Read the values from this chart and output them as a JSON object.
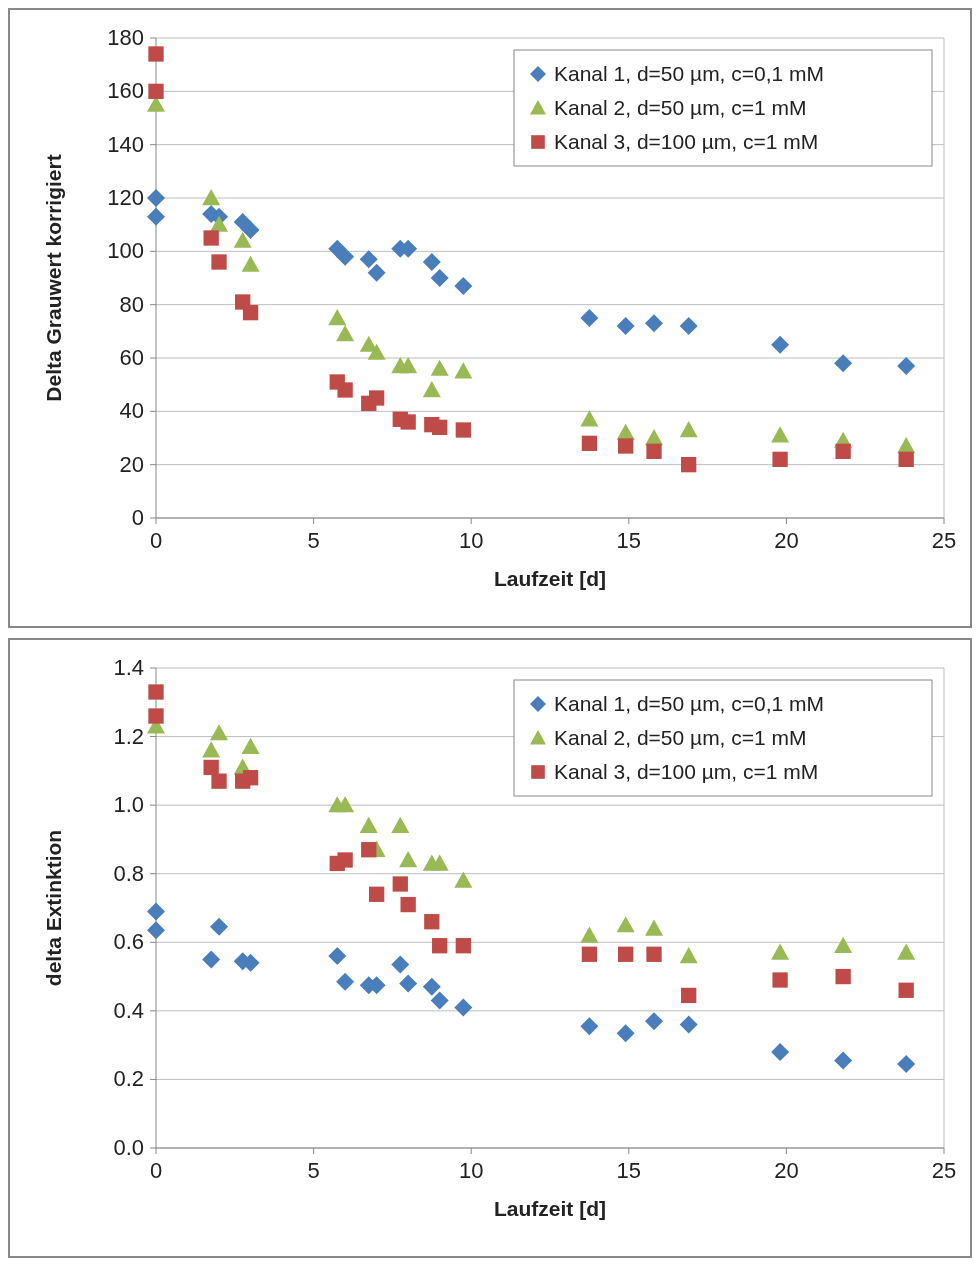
{
  "chart_data": [
    {
      "type": "scatter",
      "xlabel": "Laufzeit [d]",
      "ylabel": "Delta Grauwert korrigiert",
      "xlim": [
        0,
        25
      ],
      "xticks": [
        0,
        5,
        10,
        15,
        20,
        25
      ],
      "ylim": [
        0,
        180
      ],
      "yticks": [
        0,
        20,
        40,
        60,
        80,
        100,
        120,
        140,
        160,
        180
      ],
      "grid": "y",
      "legend": "top right",
      "x": [
        0,
        0,
        1.75,
        2,
        2.75,
        3,
        5.75,
        6,
        6.75,
        7,
        7.75,
        8,
        8.75,
        9,
        9.75,
        13.75,
        14.9,
        15.8,
        16.9,
        19.8,
        21.8,
        23.8
      ],
      "series": [
        {
          "name": "Kanal 1, d=50 µm, c=0,1 mM",
          "color": "#4a7ebb",
          "marker": "diamond",
          "values": [
            120,
            113,
            114,
            113,
            111,
            108,
            101,
            98,
            97,
            92,
            101,
            101,
            96,
            90,
            87,
            75,
            72,
            73,
            72,
            65,
            58,
            57
          ]
        },
        {
          "name": "Kanal 2, d=50 µm, c=1 mM",
          "color": "#98b954",
          "marker": "triangle",
          "values": [
            null,
            155,
            120,
            110,
            104,
            95,
            75,
            69,
            65,
            62,
            57,
            57,
            48,
            56,
            55,
            37,
            32,
            30,
            33,
            31,
            29,
            27
          ]
        },
        {
          "name": "Kanal 3, d=100 µm, c=1 mM",
          "color": "#be4b48",
          "marker": "square",
          "values": [
            174,
            160,
            105,
            96,
            81,
            77,
            51,
            48,
            43,
            45,
            37,
            36,
            35,
            34,
            33,
            28,
            27,
            25,
            20,
            22,
            25,
            22
          ]
        }
      ]
    },
    {
      "type": "scatter",
      "xlabel": "Laufzeit [d]",
      "ylabel": "delta Extinktion",
      "xlim": [
        0,
        25
      ],
      "xticks": [
        0,
        5,
        10,
        15,
        20,
        25
      ],
      "ylim": [
        0,
        1.4
      ],
      "yticks": [
        {
          "value": 0,
          "label": "0.0"
        },
        0.2,
        0.4,
        0.6,
        0.8,
        {
          "value": 1,
          "label": "1.0"
        },
        1.2,
        1.4
      ],
      "grid": "y",
      "legend": "top right",
      "x": [
        0,
        0,
        1.75,
        2,
        2.75,
        3,
        5.75,
        6,
        6.75,
        7,
        7.75,
        8,
        8.75,
        9,
        9.75,
        13.75,
        14.9,
        15.8,
        16.9,
        19.8,
        21.8,
        23.8
      ],
      "series": [
        {
          "name": "Kanal 1, d=50 µm, c=0,1 mM",
          "color": "#4a7ebb",
          "marker": "diamond",
          "values": [
            0.69,
            0.635,
            0.55,
            0.645,
            0.545,
            0.54,
            0.56,
            0.485,
            0.475,
            0.475,
            0.535,
            0.48,
            0.47,
            0.43,
            0.41,
            0.355,
            0.335,
            0.37,
            0.36,
            0.28,
            0.255,
            0.245
          ]
        },
        {
          "name": "Kanal 2, d=50 µm, c=1 mM",
          "color": "#98b954",
          "marker": "triangle",
          "values": [
            1.23,
            null,
            1.16,
            1.21,
            1.11,
            1.17,
            1.0,
            1.0,
            0.94,
            0.87,
            0.94,
            0.84,
            0.83,
            0.83,
            0.78,
            0.62,
            0.65,
            0.64,
            0.56,
            0.57,
            0.59,
            0.57
          ]
        },
        {
          "name": "Kanal 3, d=100 µm, c=1 mM",
          "color": "#be4b48",
          "marker": "square",
          "values": [
            1.33,
            1.26,
            1.11,
            1.07,
            1.07,
            1.08,
            0.83,
            0.84,
            0.87,
            0.74,
            0.77,
            0.71,
            0.66,
            0.59,
            0.59,
            0.565,
            0.565,
            0.565,
            0.445,
            0.49,
            0.5,
            0.46
          ]
        }
      ]
    }
  ]
}
